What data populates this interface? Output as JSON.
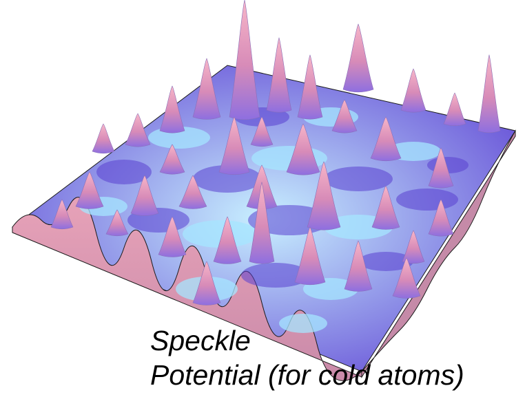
{
  "figure": {
    "palette": {
      "low": "#5a3fd0",
      "mid": "#a6e6ff",
      "high": "#f6b0c8",
      "edge": "#1a1a1a"
    }
  },
  "caption": {
    "line1": "Speckle",
    "line2": "Potential (for cold atoms)"
  }
}
